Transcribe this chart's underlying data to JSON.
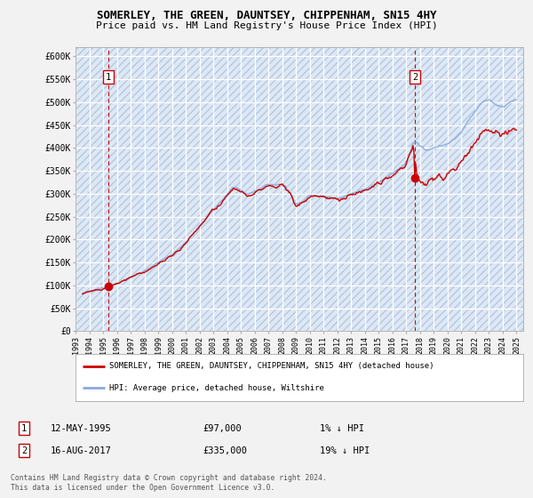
{
  "title": "SOMERLEY, THE GREEN, DAUNTSEY, CHIPPENHAM, SN15 4HY",
  "subtitle": "Price paid vs. HM Land Registry's House Price Index (HPI)",
  "xlim_start": 1993.0,
  "xlim_end": 2025.5,
  "ylim_min": 0,
  "ylim_max": 620000,
  "yticks": [
    0,
    50000,
    100000,
    150000,
    200000,
    250000,
    300000,
    350000,
    400000,
    450000,
    500000,
    550000,
    600000
  ],
  "ytick_labels": [
    "£0",
    "£50K",
    "£100K",
    "£150K",
    "£200K",
    "£250K",
    "£300K",
    "£350K",
    "£400K",
    "£450K",
    "£500K",
    "£550K",
    "£600K"
  ],
  "sale1_x": 1995.36,
  "sale1_y": 97000,
  "sale1_label": "1",
  "sale2_x": 2017.62,
  "sale2_y": 335000,
  "sale2_label": "2",
  "sale_color": "#cc0000",
  "hpi_color": "#88aadd",
  "legend_entry1": "SOMERLEY, THE GREEN, DAUNTSEY, CHIPPENHAM, SN15 4HY (detached house)",
  "legend_entry2": "HPI: Average price, detached house, Wiltshire",
  "annotation1_date": "12-MAY-1995",
  "annotation1_price": "£97,000",
  "annotation1_hpi": "1% ↓ HPI",
  "annotation2_date": "16-AUG-2017",
  "annotation2_price": "£335,000",
  "annotation2_hpi": "19% ↓ HPI",
  "footnote": "Contains HM Land Registry data © Crown copyright and database right 2024.\nThis data is licensed under the Open Government Licence v3.0.",
  "plot_bg_color": "#dce8f8",
  "hatch_color": "#b8c8d8"
}
